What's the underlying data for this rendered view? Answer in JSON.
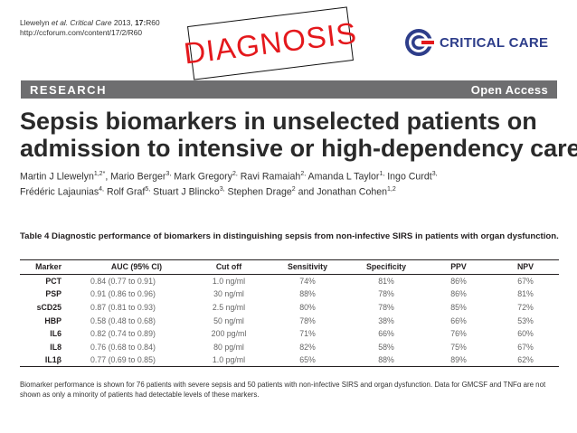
{
  "citation": {
    "authors": "Llewelyn",
    "etal": "et al.",
    "journal": "Critical Care",
    "year": "2013,",
    "volume": "17:",
    "article": "R60",
    "url": "http://ccforum.com/content/17/2/R60"
  },
  "stamp_text": "DIAGNOSIS",
  "brand": {
    "name": "CRITICAL CARE",
    "icon": "critical-care-logo-icon",
    "color": "#2d3d8a"
  },
  "banner": {
    "section": "RESEARCH",
    "access": "Open Access"
  },
  "title_lines": [
    "Sepsis biomarkers in unselected patients on",
    "admission to intensive or high-dependency care"
  ],
  "author_lines": [
    "Martin J Llewelyn1,2*, Mario Berger3, Mark Gregory2, Ravi Ramaiah2, Amanda L Taylor1, Ingo Curdt3,",
    "Frédéric Lajaunias4, Rolf Graf5, Stuart J Blincko3, Stephen Drage2 and Jonathan Cohen1,2"
  ],
  "table": {
    "caption": "Table 4 Diagnostic performance of biomarkers in distinguishing sepsis from non-infective SIRS in patients with organ dysfunction.",
    "headers": [
      "Marker",
      "AUC (95% CI)",
      "Cut off",
      "Sensitivity",
      "Specificity",
      "PPV",
      "NPV"
    ],
    "rows": [
      [
        "PCT",
        "0.84 (0.77 to 0.91)",
        "1.0 ng/ml",
        "74%",
        "81%",
        "86%",
        "67%"
      ],
      [
        "PSP",
        "0.91 (0.86 to 0.96)",
        "30 ng/ml",
        "88%",
        "78%",
        "86%",
        "81%"
      ],
      [
        "sCD25",
        "0.87 (0.81 to 0.93)",
        "2.5 ng/ml",
        "80%",
        "78%",
        "85%",
        "72%"
      ],
      [
        "HBP",
        "0.58 (0.48 to 0.68)",
        "50 ng/ml",
        "78%",
        "38%",
        "66%",
        "53%"
      ],
      [
        "IL6",
        "0.82 (0.74 to 0.89)",
        "200 pg/ml",
        "71%",
        "66%",
        "76%",
        "60%"
      ],
      [
        "IL8",
        "0.76 (0.68 to 0.84)",
        "80 pg/ml",
        "82%",
        "58%",
        "75%",
        "67%"
      ],
      [
        "IL1β",
        "0.77 (0.69 to 0.85)",
        "1.0 pg/ml",
        "65%",
        "88%",
        "89%",
        "62%"
      ]
    ],
    "footnote": "Biomarker performance is shown for 76 patients with severe sepsis and 50 patients with non-infective SIRS and organ dysfunction. Data for GMCSF and TNFα are not shown as only a minority of patients had detectable levels of these markers."
  },
  "colors": {
    "stamp": "#e4181c",
    "banner": "#6e6e70"
  }
}
